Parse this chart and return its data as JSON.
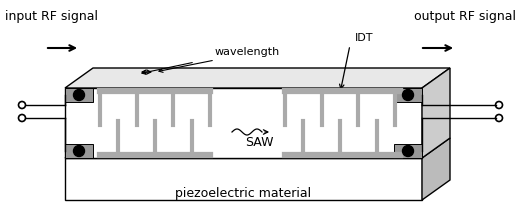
{
  "bg_color": "#ffffff",
  "black": "#000000",
  "gray_idt": "#aaaaaa",
  "gray_pad": "#999999",
  "gray_top": "#e8e8e8",
  "gray_right": "#cccccc",
  "gray_base_top": "#d8d8d8",
  "gray_base_right": "#bbbbbb",
  "text_input": "input RF signal",
  "text_output": "output RF signal",
  "text_wavelength": "wavelength",
  "text_IDT": "IDT",
  "text_SAW": "SAW",
  "text_piezo": "piezoelectric material",
  "font_size_main": 9,
  "font_size_label": 8
}
